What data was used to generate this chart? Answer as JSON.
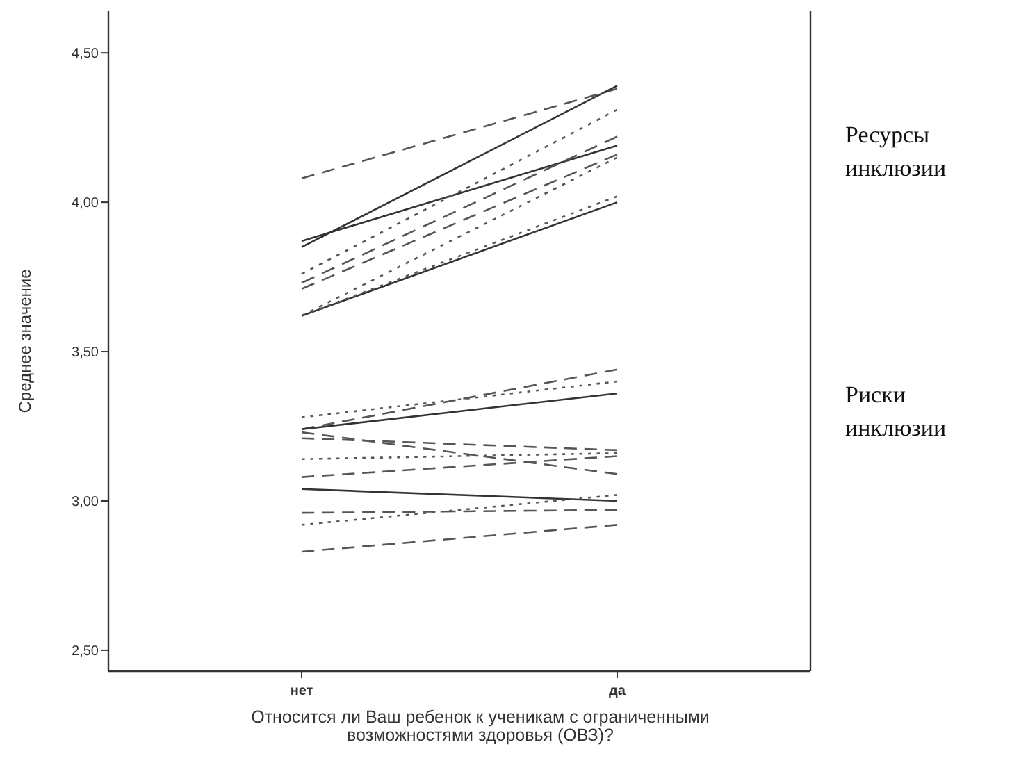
{
  "chart_data": {
    "type": "line",
    "xlabel": "Относится ли Ваш ребенок к ученикам с ограниченными возможностями здоровья (ОВЗ)?",
    "ylabel": "Среднее значение",
    "categories": [
      "нет",
      "да"
    ],
    "ylim": [
      2.43,
      4.64
    ],
    "yticks": [
      {
        "value": 2.5,
        "label": "2,50"
      },
      {
        "value": 3,
        "label": "3,00"
      },
      {
        "value": 3.5,
        "label": "3,50"
      },
      {
        "value": 4,
        "label": "4,00"
      },
      {
        "value": 4.5,
        "label": "4,50"
      }
    ],
    "grid": false,
    "marker": "none",
    "series": [
      {
        "color": "#555555",
        "line_style": "dashed",
        "values": [
          4.08,
          4.38
        ]
      },
      {
        "color": "#333333",
        "line_style": "solid",
        "values": [
          3.85,
          4.39
        ]
      },
      {
        "color": "#333333",
        "line_style": "solid",
        "values": [
          3.87,
          4.19
        ]
      },
      {
        "color": "#555555",
        "line_style": "dotted",
        "values": [
          3.76,
          4.31
        ]
      },
      {
        "color": "#555555",
        "line_style": "dashed",
        "values": [
          3.73,
          4.22
        ]
      },
      {
        "color": "#555555",
        "line_style": "dashed",
        "values": [
          3.71,
          4.16
        ]
      },
      {
        "color": "#555555",
        "line_style": "dotted",
        "values": [
          3.62,
          4.15
        ]
      },
      {
        "color": "#333333",
        "line_style": "solid",
        "values": [
          3.62,
          4.0
        ]
      },
      {
        "color": "#555555",
        "line_style": "dotted",
        "values": [
          3.62,
          4.02
        ]
      },
      {
        "color": "#555555",
        "line_style": "dotted",
        "values": [
          3.28,
          3.4
        ]
      },
      {
        "color": "#555555",
        "line_style": "dashed",
        "values": [
          3.24,
          3.44
        ]
      },
      {
        "color": "#333333",
        "line_style": "solid",
        "values": [
          3.24,
          3.36
        ]
      },
      {
        "color": "#555555",
        "line_style": "dashed",
        "values": [
          3.23,
          3.09
        ]
      },
      {
        "color": "#555555",
        "line_style": "dashed",
        "values": [
          3.21,
          3.17
        ]
      },
      {
        "color": "#555555",
        "line_style": "dotted",
        "values": [
          3.14,
          3.16
        ]
      },
      {
        "color": "#555555",
        "line_style": "dashed",
        "values": [
          3.08,
          3.15
        ]
      },
      {
        "color": "#333333",
        "line_style": "solid",
        "values": [
          3.04,
          3.0
        ]
      },
      {
        "color": "#555555",
        "line_style": "dashed",
        "values": [
          2.96,
          2.97
        ]
      },
      {
        "color": "#555555",
        "line_style": "dotted",
        "values": [
          2.92,
          3.02
        ]
      },
      {
        "color": "#555555",
        "line_style": "dashed",
        "values": [
          2.83,
          2.92
        ]
      }
    ],
    "annotations": [
      "Ресурсы инклюзии",
      "Риски инклюзии"
    ]
  }
}
